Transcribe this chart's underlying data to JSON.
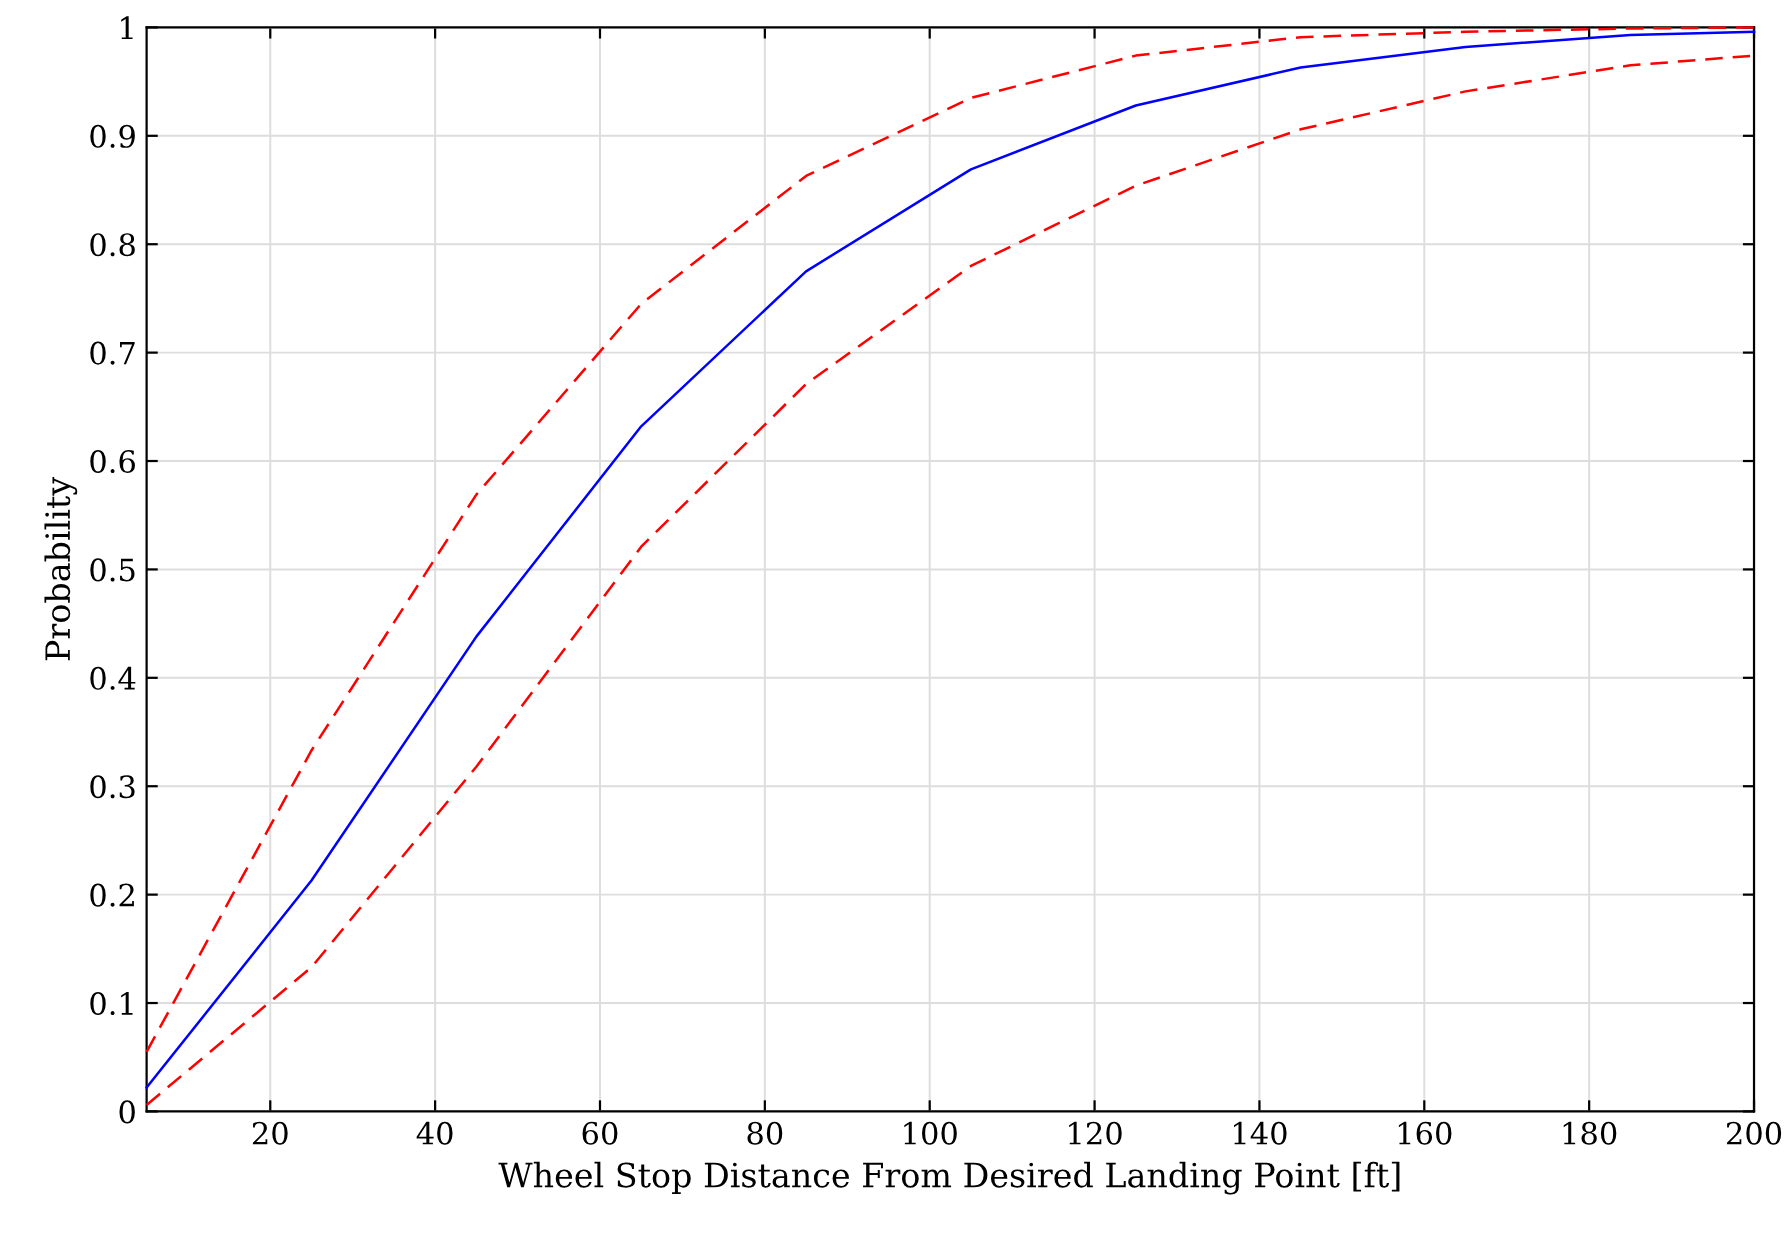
{
  "chart_data": {
    "type": "line",
    "xlabel": "Wheel Stop Distance From Desired Landing Point [ft]",
    "ylabel": "Probability",
    "x": [
      5,
      25,
      45,
      65,
      85,
      105,
      125,
      145,
      165,
      185,
      200
    ],
    "series": [
      {
        "color": "#0000ff",
        "line_style": "solid",
        "values": [
          0.022,
          0.213,
          0.438,
          0.632,
          0.775,
          0.869,
          0.928,
          0.963,
          0.982,
          0.993,
          0.996
        ]
      },
      {
        "color": "#ff0000",
        "line_style": "dashed",
        "values": [
          0.055,
          0.333,
          0.569,
          0.745,
          0.863,
          0.935,
          0.974,
          0.991,
          0.996,
          0.999,
          1.0
        ]
      },
      {
        "color": "#ff0000",
        "line_style": "dashed",
        "values": [
          0.006,
          0.133,
          0.318,
          0.521,
          0.671,
          0.78,
          0.854,
          0.906,
          0.941,
          0.965,
          0.974
        ]
      }
    ],
    "xlim": [
      5,
      200
    ],
    "xticks": [
      20,
      40,
      60,
      80,
      100,
      120,
      140,
      160,
      180,
      200
    ],
    "ylim": [
      0,
      1
    ],
    "yticks": [
      0,
      0.1,
      0.2,
      0.3,
      0.4,
      0.5,
      0.6,
      0.7,
      0.8,
      0.9,
      1
    ],
    "grid": true,
    "marker": "none"
  }
}
